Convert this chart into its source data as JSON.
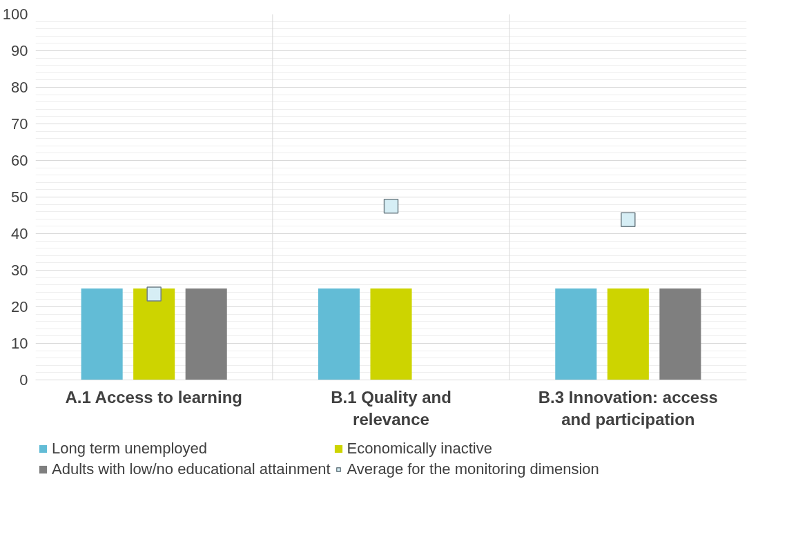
{
  "chart_data": {
    "type": "bar",
    "categories": [
      "A.1 Access to learning",
      "B.1 Quality and relevance",
      "B.3 Innovation: access and participation"
    ],
    "series": [
      {
        "name": "Long term unemployed",
        "color": "#62bcd6",
        "values": [
          25,
          25,
          25
        ]
      },
      {
        "name": "Economically inactive",
        "color": "#cdd400",
        "values": [
          25,
          25,
          25
        ]
      },
      {
        "name": "Adults with low/no educational attainment",
        "color": "#7f7f7f",
        "values": [
          25,
          null,
          25
        ]
      },
      {
        "name": "Average for the monitoring dimension",
        "type": "scatter",
        "marker": "square",
        "color": "#d6eef5",
        "values": [
          23.5,
          47.5,
          43.8
        ]
      }
    ],
    "ylim": [
      0,
      100
    ],
    "yticks": [
      0,
      10,
      20,
      30,
      40,
      50,
      60,
      70,
      80,
      90,
      100
    ],
    "grid": "y",
    "legend": "bottom"
  }
}
